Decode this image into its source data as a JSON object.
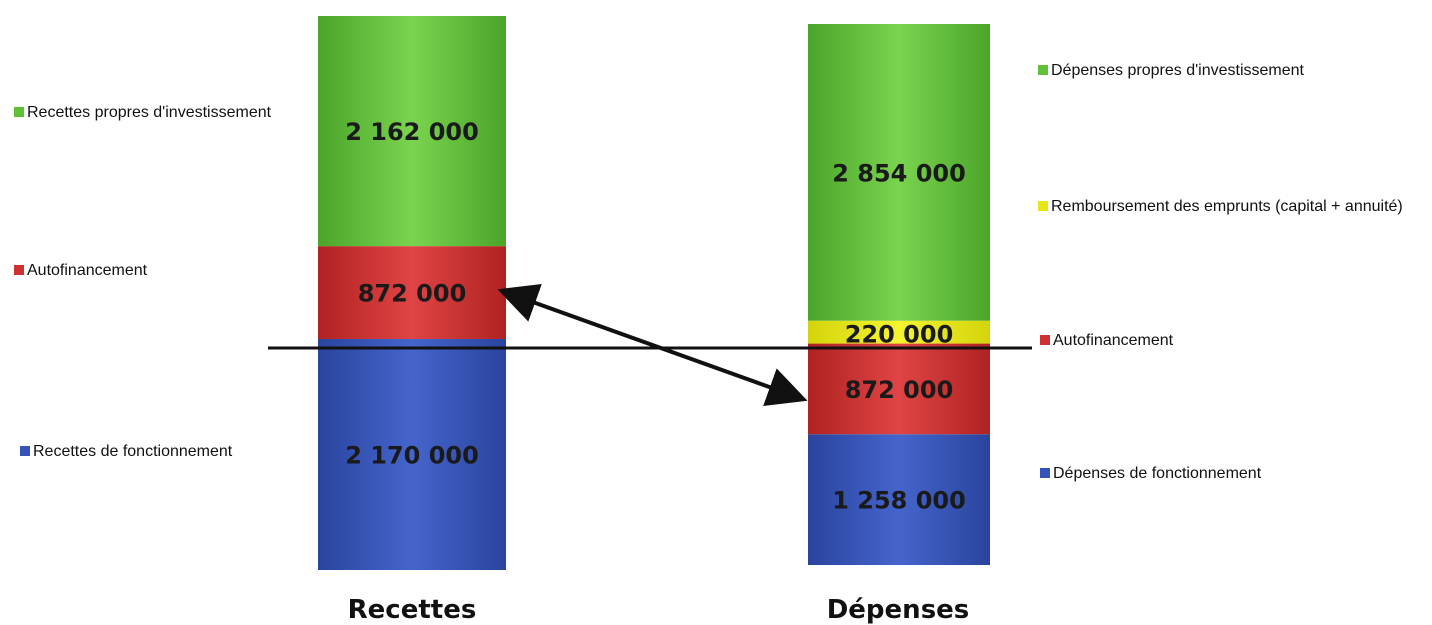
{
  "chart_data": {
    "type": "bar",
    "stacked": true,
    "title": "",
    "xlabel": "",
    "ylabel": "",
    "categories": [
      "Recettes",
      "Dépenses"
    ],
    "series": [
      {
        "name": "Recettes de fonctionnement",
        "color": "#3553b8",
        "values": [
          2170000,
          null
        ],
        "labels": [
          "2 170 000",
          null
        ]
      },
      {
        "name": "Autofinancement",
        "color": "#cf2f2f",
        "values": [
          872000,
          null
        ],
        "labels": [
          "872 000",
          null
        ]
      },
      {
        "name": "Recettes propres d'investissement",
        "color": "#5fc13a",
        "values": [
          2162000,
          null
        ],
        "labels": [
          "2 162 000",
          null
        ]
      },
      {
        "name": "Dépenses de fonctionnement",
        "color": "#3553b8",
        "values": [
          null,
          1258000
        ],
        "labels": [
          null,
          "1 258 000"
        ]
      },
      {
        "name": "Autofinancement",
        "color": "#cf2f2f",
        "values": [
          null,
          872000
        ],
        "labels": [
          null,
          "872 000"
        ]
      },
      {
        "name": "Remboursement des emprunts (capital + annuité)",
        "color": "#e6e619",
        "values": [
          null,
          220000
        ],
        "labels": [
          null,
          "220 000"
        ]
      },
      {
        "name": "Dépenses propres d'investissement",
        "color": "#5fc13a",
        "values": [
          null,
          2854000
        ],
        "labels": [
          null,
          "2 854 000"
        ]
      }
    ],
    "legend": {
      "Recettes": [
        {
          "text": "Recettes propres d'investissement",
          "color": "#5fc13a"
        },
        {
          "text": "Autofinancement",
          "color": "#cf2f2f"
        },
        {
          "text": "Recettes de fonctionnement",
          "color": "#3553b8"
        }
      ],
      "Dépenses": [
        {
          "text": "Dépenses propres d'investissement",
          "color": "#5fc13a"
        },
        {
          "text": "Remboursement des emprunts (capital + annuité)",
          "color": "#e6e619"
        },
        {
          "text": "Autofinancement",
          "color": "#cf2f2f"
        },
        {
          "text": "Dépenses de fonctionnement",
          "color": "#3553b8"
        }
      ]
    },
    "annotations": [
      "double-arrow between the two Autofinancement segments",
      "horizontal reference line at the top of fonctionnement"
    ],
    "grid": false
  }
}
